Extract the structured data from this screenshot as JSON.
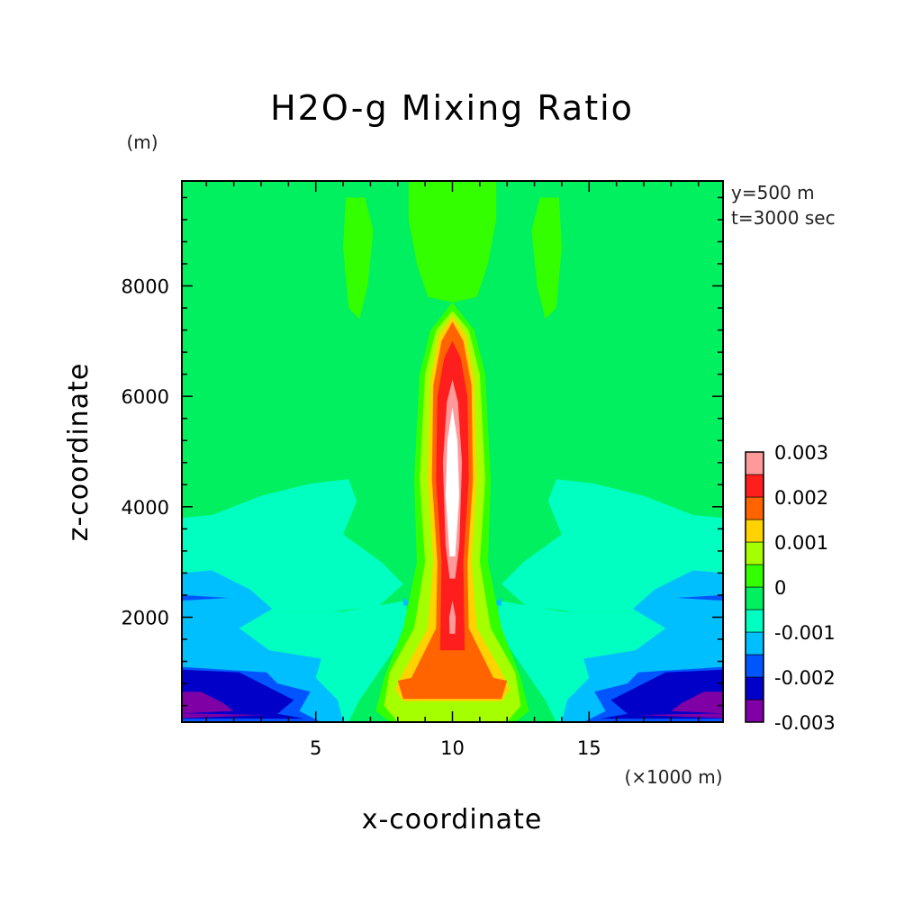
{
  "chart_data": {
    "type": "heatmap",
    "title": "H2O-g Mixing Ratio",
    "xlabel": "x-coordinate",
    "ylabel": "z-coordinate",
    "x_units": "(×1000 m)",
    "y_units": "(m)",
    "annotations": [
      "y=500 m",
      "t=3000 sec"
    ],
    "xlim": [
      0.1,
      19.9
    ],
    "ylim": [
      100,
      9900
    ],
    "x_ticks": [
      5,
      10,
      15
    ],
    "y_ticks": [
      2000,
      4000,
      6000,
      8000
    ],
    "colorbar": {
      "labels": [
        "0.003",
        "0.002",
        "0.001",
        "0",
        "-0.001",
        "-0.002",
        "-0.003"
      ],
      "label_values": [
        0.003,
        0.002,
        0.001,
        0,
        -0.001,
        -0.002,
        -0.003
      ],
      "levels": [
        -0.003,
        -0.0025,
        -0.002,
        -0.0015,
        -0.001,
        -0.0005,
        0,
        0.0005,
        0.001,
        0.0015,
        0.002,
        0.0025,
        0.003
      ],
      "colors": [
        "#7f00a5",
        "#0000c8",
        "#0055ff",
        "#00bfff",
        "#00ffc0",
        "#00f060",
        "#33ff00",
        "#a5ff00",
        "#ffd200",
        "#ff6400",
        "#ff1e1e",
        "#ff9a9a",
        "#ffffff"
      ]
    },
    "regions": [
      {
        "name": "background",
        "x_range": [
          0.1,
          19.9
        ],
        "z_range": [
          100,
          9900
        ],
        "value": -0.0002
      },
      {
        "name": "upper-lobe-left",
        "x_center": 6.7,
        "z_center": 8600,
        "value": 0.0003
      },
      {
        "name": "upper-lobe-center",
        "x_center": 10.0,
        "z_center": 8800,
        "value": 0.0003
      },
      {
        "name": "upper-lobe-right",
        "x_center": 13.3,
        "z_center": 8600,
        "value": 0.0003
      },
      {
        "name": "low-level-dry-layer",
        "z_range": [
          100,
          4500
        ],
        "value": -0.0008
      },
      {
        "name": "boundary-layer-minimum",
        "z_range": [
          100,
          700
        ],
        "value": -0.003
      },
      {
        "name": "central-plume-base",
        "x_center": 10.0,
        "z_center": 700,
        "value": 0.0018
      },
      {
        "name": "central-plume-core",
        "x_center": 10.0,
        "z_center": 4500,
        "value": 0.003
      }
    ]
  }
}
